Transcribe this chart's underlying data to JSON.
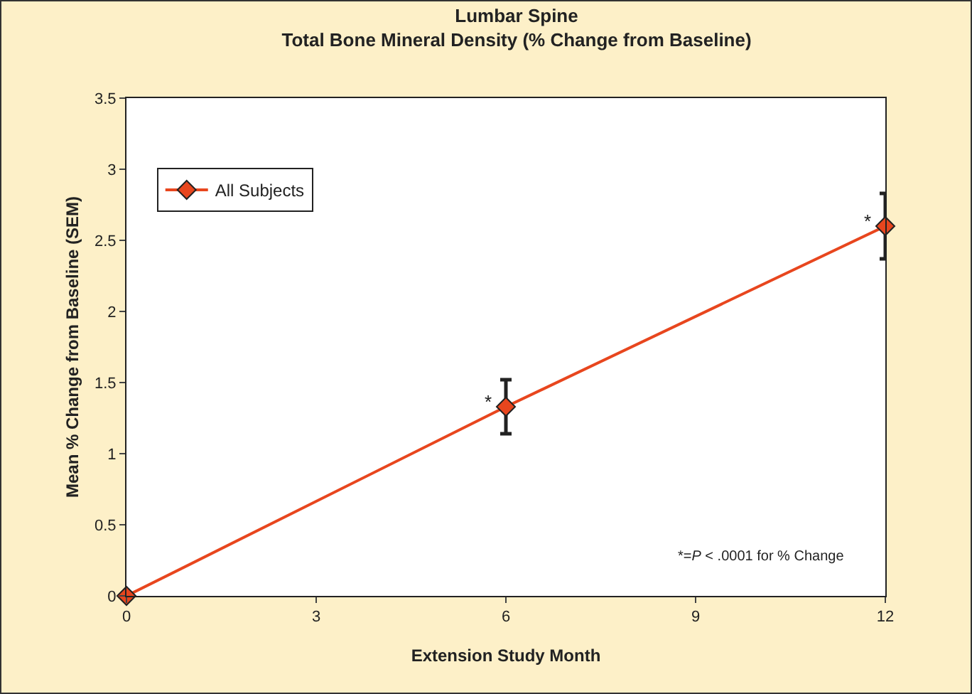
{
  "chart_data": {
    "type": "line",
    "title": "Lumbar Spine",
    "subtitle": "Total Bone Mineral Density (% Change from Baseline)",
    "xlabel": "Extension Study Month",
    "ylabel": "Mean % Change from Baseline (SEM)",
    "x": [
      0,
      6,
      12
    ],
    "series": [
      {
        "name": "All Subjects",
        "color": "#e8461e",
        "values": [
          0,
          1.33,
          2.6
        ],
        "errors": [
          null,
          0.19,
          0.23
        ]
      }
    ],
    "xlim": [
      0,
      12
    ],
    "xticks": [
      0,
      3,
      6,
      9,
      12
    ],
    "ylim": [
      0,
      3.5
    ],
    "yticks": [
      0,
      0.5,
      1,
      1.5,
      2,
      2.5,
      3,
      3.5
    ],
    "annotations": [
      {
        "text": "*",
        "x": 6,
        "y": 1.33
      },
      {
        "text": "*",
        "x": 12,
        "y": 2.6
      },
      "*=P < .0001 for % Change"
    ],
    "grid": false,
    "legend": "top left",
    "marker": "diamond",
    "line_style": "solid"
  }
}
